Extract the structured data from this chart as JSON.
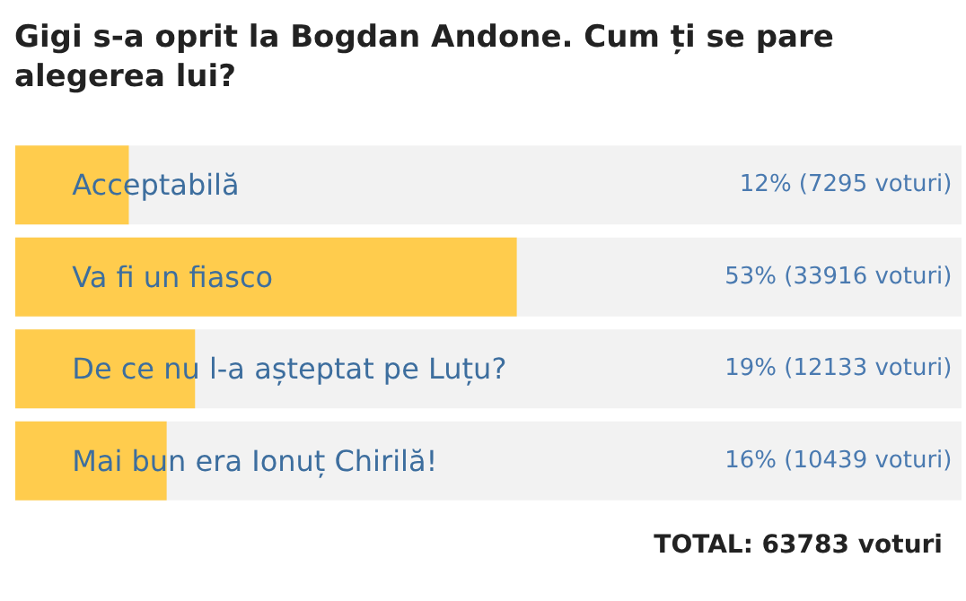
{
  "chart_data": {
    "type": "bar",
    "orientation": "horizontal",
    "title": "Gigi s-a oprit la Bogdan Andone. Cum ți se pare alegerea lui?",
    "categories": [
      "Acceptabilă",
      "Va fi un fiasco",
      "De ce nu l-a așteptat pe Luțu?",
      "Mai bun era Ionuț Chirilă!"
    ],
    "values": [
      12,
      53,
      19,
      16
    ],
    "value_labels": [
      "12% (7295 voturi)",
      "53% (33916 voturi)",
      "19% (12133 voturi)",
      "16% (10439 voturi)"
    ],
    "color": "#ffcc4d",
    "xlim": [
      0,
      100
    ],
    "tick_labels": false,
    "annotations": [
      "TOTAL: 63783 voturi"
    ]
  }
}
